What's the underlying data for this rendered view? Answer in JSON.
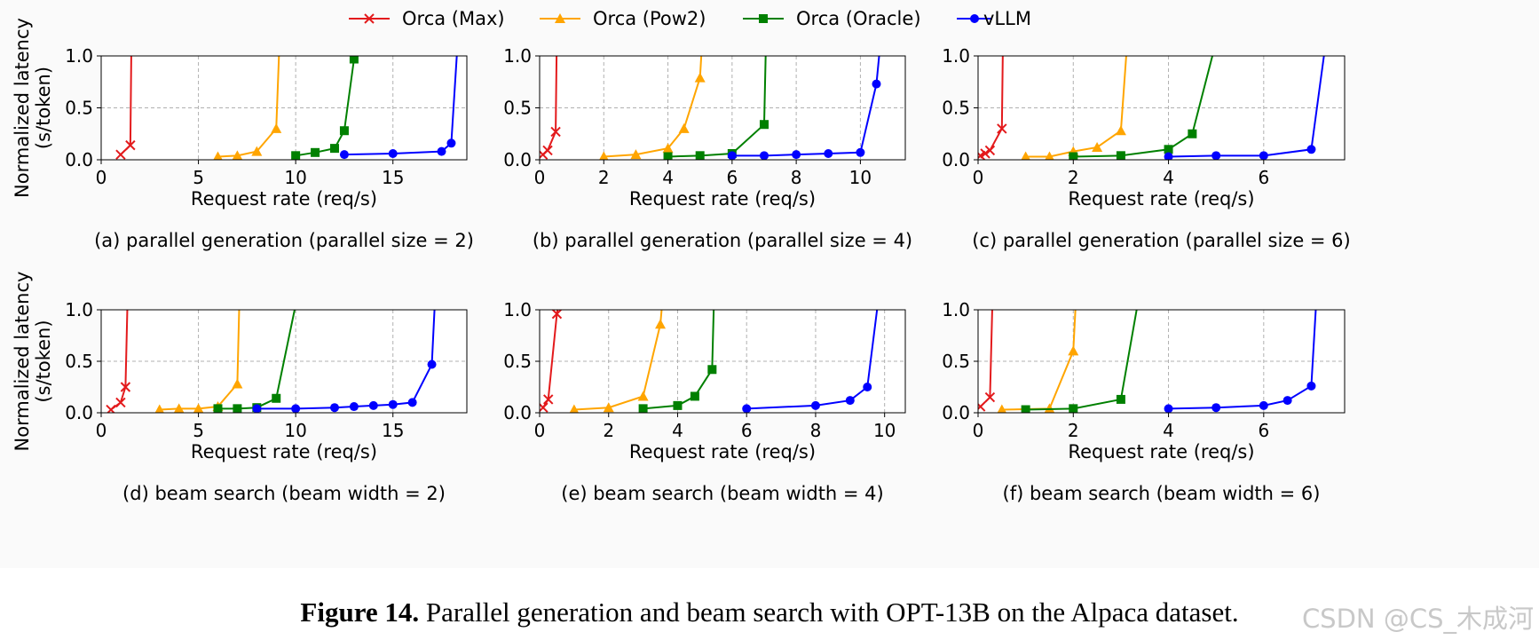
{
  "legend": [
    {
      "name": "Orca (Max)",
      "color": "#e31a1c",
      "marker": "x"
    },
    {
      "name": "Orca (Pow2)",
      "color": "#ffa500",
      "marker": "triangle"
    },
    {
      "name": "Orca (Oracle)",
      "color": "#008000",
      "marker": "square"
    },
    {
      "name": "vLLM",
      "color": "#0000ff",
      "marker": "circle"
    }
  ],
  "caption": {
    "label": "Figure 14.",
    "text": " Parallel generation and beam search with OPT-13B on the Alpaca dataset."
  },
  "watermark": "CSDN @CS_木成河",
  "chart_data": [
    {
      "type": "line",
      "subtitle": "(a) parallel generation (parallel size = 2)",
      "xlabel": "Request rate (req/s)",
      "ylabel": [
        "Normalized latency",
        "(s/token)"
      ],
      "xlim": [
        0,
        18.8
      ],
      "ylim": [
        0,
        1
      ],
      "xticks": [
        0,
        5,
        10,
        15
      ],
      "yticks": [
        0.0,
        0.5,
        1.0
      ],
      "series": [
        {
          "name": "Orca (Max)",
          "points": [
            [
              1.0,
              0.05
            ],
            [
              1.5,
              0.14
            ]
          ],
          "tail": [
            1.55,
            1.05
          ]
        },
        {
          "name": "Orca (Pow2)",
          "points": [
            [
              6.0,
              0.03
            ],
            [
              7.0,
              0.04
            ],
            [
              8.0,
              0.08
            ],
            [
              9.0,
              0.3
            ]
          ],
          "tail": [
            9.15,
            1.05
          ]
        },
        {
          "name": "Orca (Oracle)",
          "points": [
            [
              10.0,
              0.04
            ],
            [
              11.0,
              0.07
            ],
            [
              12.0,
              0.11
            ],
            [
              12.5,
              0.28
            ],
            [
              13.0,
              0.97
            ]
          ],
          "tail": [
            13.05,
            1.05
          ]
        },
        {
          "name": "vLLM",
          "points": [
            [
              12.5,
              0.05
            ],
            [
              15.0,
              0.06
            ],
            [
              17.5,
              0.08
            ],
            [
              18.0,
              0.16
            ]
          ],
          "tail": [
            18.3,
            1.05
          ]
        }
      ]
    },
    {
      "type": "line",
      "subtitle": "(b) parallel generation (parallel size = 4)",
      "xlabel": "Request rate (req/s)",
      "ylabel": [],
      "xlim": [
        0,
        11.4
      ],
      "ylim": [
        0,
        1
      ],
      "xticks": [
        0,
        2,
        4,
        6,
        8,
        10
      ],
      "yticks": [
        0.0,
        0.5,
        1.0
      ],
      "series": [
        {
          "name": "Orca (Max)",
          "points": [
            [
              0.1,
              0.05
            ],
            [
              0.25,
              0.09
            ],
            [
              0.5,
              0.27
            ]
          ],
          "tail": [
            0.53,
            1.05
          ]
        },
        {
          "name": "Orca (Pow2)",
          "points": [
            [
              2.0,
              0.03
            ],
            [
              3.0,
              0.05
            ],
            [
              4.0,
              0.11
            ],
            [
              4.5,
              0.3
            ],
            [
              5.0,
              0.79
            ]
          ],
          "tail": [
            5.05,
            1.05
          ]
        },
        {
          "name": "Orca (Oracle)",
          "points": [
            [
              4.0,
              0.03
            ],
            [
              5.0,
              0.04
            ],
            [
              6.0,
              0.06
            ],
            [
              7.0,
              0.34
            ]
          ],
          "tail": [
            7.05,
            1.05
          ]
        },
        {
          "name": "vLLM",
          "points": [
            [
              6.0,
              0.04
            ],
            [
              7.0,
              0.04
            ],
            [
              8.0,
              0.05
            ],
            [
              9.0,
              0.06
            ],
            [
              10.0,
              0.07
            ],
            [
              10.5,
              0.73
            ]
          ],
          "tail": [
            10.6,
            1.05
          ]
        }
      ]
    },
    {
      "type": "line",
      "subtitle": "(c) parallel generation (parallel size = 6)",
      "xlabel": "Request rate (req/s)",
      "ylabel": [],
      "xlim": [
        0,
        7.7
      ],
      "ylim": [
        0,
        1
      ],
      "xticks": [
        0,
        2,
        4,
        6
      ],
      "yticks": [
        0.0,
        0.5,
        1.0
      ],
      "series": [
        {
          "name": "Orca (Max)",
          "points": [
            [
              0.05,
              0.04
            ],
            [
              0.15,
              0.06
            ],
            [
              0.25,
              0.09
            ],
            [
              0.5,
              0.3
            ]
          ],
          "tail": [
            0.52,
            1.05
          ]
        },
        {
          "name": "Orca (Pow2)",
          "points": [
            [
              1.0,
              0.03
            ],
            [
              1.5,
              0.03
            ],
            [
              2.0,
              0.08
            ],
            [
              2.5,
              0.12
            ],
            [
              3.0,
              0.28
            ]
          ],
          "tail": [
            3.12,
            1.05
          ]
        },
        {
          "name": "Orca (Oracle)",
          "points": [
            [
              2.0,
              0.03
            ],
            [
              3.0,
              0.04
            ],
            [
              4.0,
              0.1
            ],
            [
              4.5,
              0.25
            ]
          ],
          "tail": [
            4.95,
            1.05
          ]
        },
        {
          "name": "vLLM",
          "points": [
            [
              4.0,
              0.03
            ],
            [
              5.0,
              0.04
            ],
            [
              6.0,
              0.04
            ],
            [
              7.0,
              0.1
            ]
          ],
          "tail": [
            7.28,
            1.05
          ]
        }
      ]
    },
    {
      "type": "line",
      "subtitle": "(d) beam search (beam width = 2)",
      "xlabel": "Request rate (req/s)",
      "ylabel": [
        "Normalized latency",
        "(s/token)"
      ],
      "xlim": [
        0,
        18.8
      ],
      "ylim": [
        0,
        1
      ],
      "xticks": [
        0,
        5,
        10,
        15
      ],
      "yticks": [
        0.0,
        0.5,
        1.0
      ],
      "series": [
        {
          "name": "Orca (Max)",
          "points": [
            [
              0.5,
              0.03
            ],
            [
              1.0,
              0.1
            ],
            [
              1.25,
              0.25
            ]
          ],
          "tail": [
            1.35,
            1.05
          ]
        },
        {
          "name": "Orca (Pow2)",
          "points": [
            [
              3.0,
              0.03
            ],
            [
              4.0,
              0.04
            ],
            [
              5.0,
              0.04
            ],
            [
              6.0,
              0.06
            ],
            [
              7.0,
              0.28
            ]
          ],
          "tail": [
            7.1,
            1.05
          ]
        },
        {
          "name": "Orca (Oracle)",
          "points": [
            [
              6.0,
              0.04
            ],
            [
              7.0,
              0.04
            ],
            [
              8.0,
              0.05
            ],
            [
              9.0,
              0.14
            ]
          ],
          "tail": [
            10.0,
            1.05
          ]
        },
        {
          "name": "vLLM",
          "points": [
            [
              8.0,
              0.04
            ],
            [
              10.0,
              0.04
            ],
            [
              12.0,
              0.05
            ],
            [
              13.0,
              0.06
            ],
            [
              14.0,
              0.07
            ],
            [
              15.0,
              0.08
            ],
            [
              16.0,
              0.1
            ],
            [
              17.0,
              0.47
            ]
          ],
          "tail": [
            17.15,
            1.05
          ]
        }
      ]
    },
    {
      "type": "line",
      "subtitle": "(e) beam search (beam width = 4)",
      "xlabel": "Request rate (req/s)",
      "ylabel": [],
      "xlim": [
        0,
        10.6
      ],
      "ylim": [
        0,
        1
      ],
      "xticks": [
        0,
        2,
        4,
        6,
        8,
        10
      ],
      "yticks": [
        0.0,
        0.5,
        1.0
      ],
      "series": [
        {
          "name": "Orca (Max)",
          "points": [
            [
              0.1,
              0.05
            ],
            [
              0.25,
              0.13
            ],
            [
              0.5,
              0.96
            ]
          ],
          "tail": [
            0.55,
            1.05
          ]
        },
        {
          "name": "Orca (Pow2)",
          "points": [
            [
              1.0,
              0.03
            ],
            [
              2.0,
              0.05
            ],
            [
              3.0,
              0.16
            ],
            [
              3.5,
              0.86
            ]
          ],
          "tail": [
            3.55,
            1.05
          ]
        },
        {
          "name": "Orca (Oracle)",
          "points": [
            [
              3.0,
              0.04
            ],
            [
              4.0,
              0.07
            ],
            [
              4.5,
              0.16
            ],
            [
              5.0,
              0.42
            ]
          ],
          "tail": [
            5.05,
            1.05
          ]
        },
        {
          "name": "vLLM",
          "points": [
            [
              6.0,
              0.04
            ],
            [
              8.0,
              0.07
            ],
            [
              9.0,
              0.12
            ],
            [
              9.5,
              0.25
            ]
          ],
          "tail": [
            9.8,
            1.05
          ]
        }
      ]
    },
    {
      "type": "line",
      "subtitle": "(f) beam search (beam width = 6)",
      "xlabel": "Request rate (req/s)",
      "ylabel": [],
      "xlim": [
        0,
        7.7
      ],
      "ylim": [
        0,
        1
      ],
      "xticks": [
        0,
        2,
        4,
        6
      ],
      "yticks": [
        0.0,
        0.5,
        1.0
      ],
      "series": [
        {
          "name": "Orca (Max)",
          "points": [
            [
              0.05,
              0.06
            ],
            [
              0.25,
              0.15
            ]
          ],
          "tail": [
            0.3,
            1.05
          ]
        },
        {
          "name": "Orca (Pow2)",
          "points": [
            [
              0.5,
              0.03
            ],
            [
              1.5,
              0.04
            ],
            [
              2.0,
              0.6
            ]
          ],
          "tail": [
            2.05,
            1.05
          ]
        },
        {
          "name": "Orca (Oracle)",
          "points": [
            [
              1.0,
              0.03
            ],
            [
              2.0,
              0.04
            ],
            [
              3.0,
              0.13
            ]
          ],
          "tail": [
            3.35,
            1.05
          ]
        },
        {
          "name": "vLLM",
          "points": [
            [
              4.0,
              0.04
            ],
            [
              5.0,
              0.05
            ],
            [
              6.0,
              0.07
            ],
            [
              6.5,
              0.12
            ],
            [
              7.0,
              0.26
            ]
          ],
          "tail": [
            7.1,
            1.05
          ]
        }
      ]
    }
  ]
}
